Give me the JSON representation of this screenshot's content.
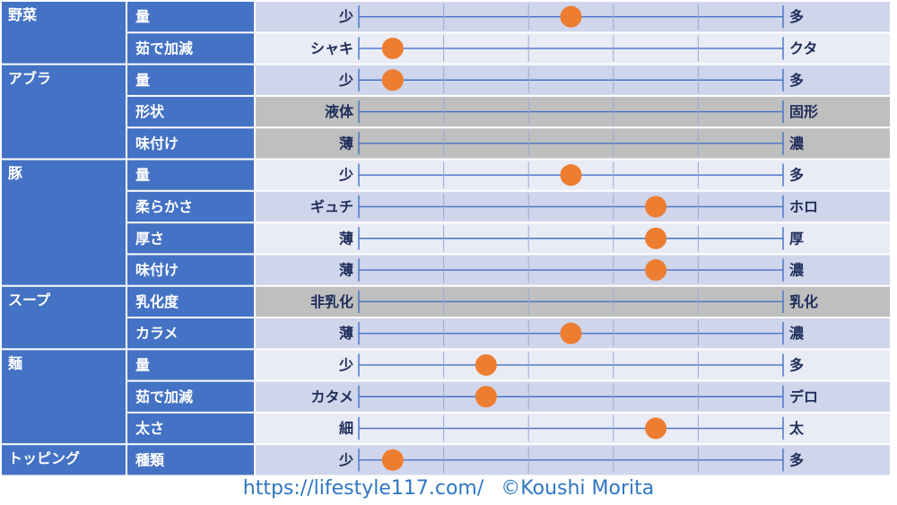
{
  "colors": {
    "category_bg": "#4472c4",
    "row_bg": "#cfd5ea",
    "row_bg_alt": "#e9ebf5",
    "disabled_bg": "#bfbfbf",
    "scale_line": "#4472c4",
    "marker": "#ed7d31",
    "label_text": "#1f2d5a",
    "header_text": "#ffffff",
    "footer_text": "#2f77c2"
  },
  "chart_data": {
    "type": "table",
    "scale_min": 0,
    "scale_max": 5,
    "groups": [
      {
        "name": "野菜",
        "rows": [
          {
            "attribute": "量",
            "left": "少",
            "right": "多",
            "value": 2.5
          },
          {
            "attribute": "茹で加減",
            "left": "シャキ",
            "right": "クタ",
            "value": 0.4
          }
        ]
      },
      {
        "name": "アブラ",
        "rows": [
          {
            "attribute": "量",
            "left": "少",
            "right": "多",
            "value": 0.4
          },
          {
            "attribute": "形状",
            "left": "液体",
            "right": "固形",
            "value": null
          },
          {
            "attribute": "味付け",
            "left": "薄",
            "right": "濃",
            "value": null
          }
        ]
      },
      {
        "name": "豚",
        "rows": [
          {
            "attribute": "量",
            "left": "少",
            "right": "多",
            "value": 2.5
          },
          {
            "attribute": "柔らかさ",
            "left": "ギュチ",
            "right": "ホロ",
            "value": 3.5
          },
          {
            "attribute": "厚さ",
            "left": "薄",
            "right": "厚",
            "value": 3.5
          },
          {
            "attribute": "味付け",
            "left": "薄",
            "right": "濃",
            "value": 3.5
          }
        ]
      },
      {
        "name": "スープ",
        "rows": [
          {
            "attribute": "乳化度",
            "left": "非乳化",
            "right": "乳化",
            "value": null
          },
          {
            "attribute": "カラメ",
            "left": "薄",
            "right": "濃",
            "value": 2.5
          }
        ]
      },
      {
        "name": "麺",
        "rows": [
          {
            "attribute": "量",
            "left": "少",
            "right": "多",
            "value": 1.5
          },
          {
            "attribute": "茹で加減",
            "left": "カタメ",
            "right": "デロ",
            "value": 1.5
          },
          {
            "attribute": "太さ",
            "left": "細",
            "right": "太",
            "value": 3.5
          }
        ]
      },
      {
        "name": "トッピング",
        "rows": [
          {
            "attribute": "種類",
            "left": "少",
            "right": "多",
            "value": 0.4
          }
        ]
      }
    ]
  },
  "footer": {
    "url": "https://lifestyle117.com/",
    "credit": "©Koushi Morita"
  }
}
